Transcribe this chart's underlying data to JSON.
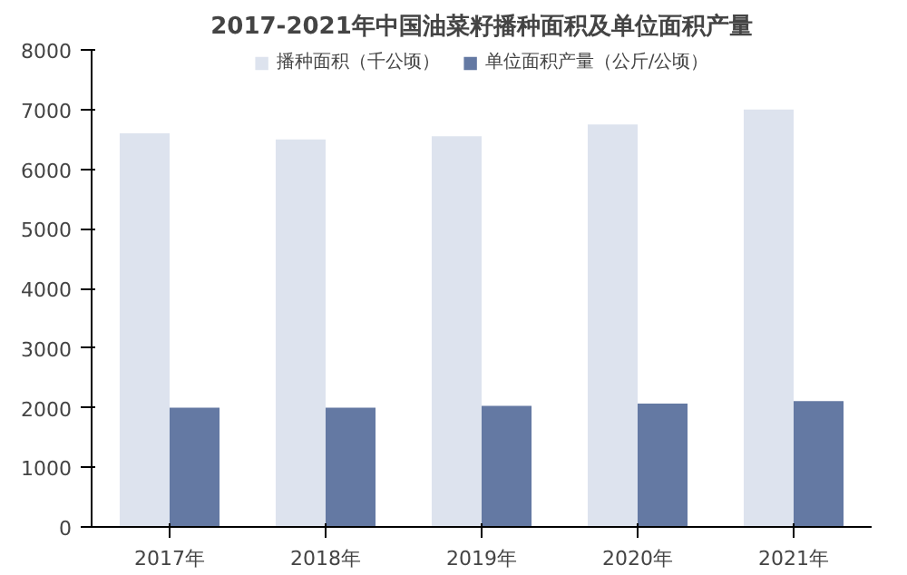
{
  "chart_data": {
    "type": "bar",
    "title": "2017-2021年中国油菜籽播种面积及单位面积产量",
    "categories": [
      "2017年",
      "2018年",
      "2019年",
      "2020年",
      "2021年"
    ],
    "series": [
      {
        "name": "播种面积（千公顷）",
        "color": "#dde3ee",
        "values": [
          6600,
          6500,
          6550,
          6750,
          7000
        ]
      },
      {
        "name": "单位面积产量（公斤/公顷）",
        "color": "#6479a3",
        "values": [
          2000,
          2000,
          2030,
          2070,
          2110
        ]
      }
    ],
    "ylim": [
      0,
      8000
    ],
    "yticks": [
      0,
      1000,
      2000,
      3000,
      4000,
      5000,
      6000,
      7000,
      8000
    ],
    "grid": false,
    "legend": "top"
  }
}
